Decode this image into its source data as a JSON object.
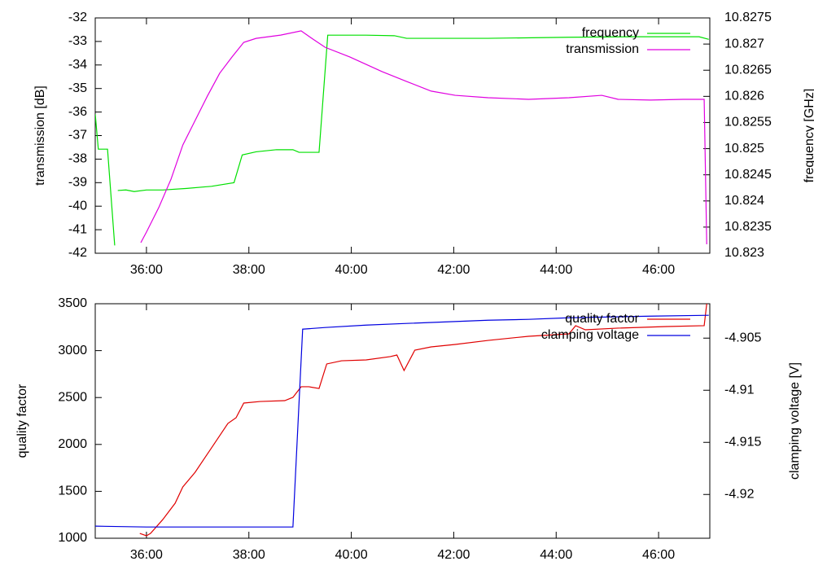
{
  "chart_data": [
    {
      "type": "line",
      "ylabel": "transmission [dB]",
      "y2label": "frequency [GHz]",
      "xlim": [
        35,
        47
      ],
      "xticks": [
        {
          "value": 36,
          "label": "36:00"
        },
        {
          "value": 38,
          "label": "38:00"
        },
        {
          "value": 40,
          "label": "40:00"
        },
        {
          "value": 42,
          "label": "42:00"
        },
        {
          "value": 44,
          "label": "44:00"
        },
        {
          "value": 46,
          "label": "46:00"
        }
      ],
      "ylim": [
        -42,
        -32
      ],
      "yticks": [
        -42,
        -41,
        -40,
        -39,
        -38,
        -37,
        -36,
        -35,
        -34,
        -33,
        -32
      ],
      "y2lim": [
        10.823,
        10.8275
      ],
      "y2ticks": [
        10.823,
        10.8235,
        10.824,
        10.8245,
        10.825,
        10.8255,
        10.826,
        10.8265,
        10.827,
        10.8275
      ],
      "legend": "top-right",
      "series": [
        {
          "name": "frequency",
          "color": "#00e000",
          "axis": "y2",
          "x": [
            35.0,
            35.06,
            35.24,
            35.38,
            35.41,
            35.44,
            35.6,
            35.76,
            36.0,
            36.32,
            36.79,
            37.27,
            37.71,
            37.87,
            38.14,
            38.54,
            38.86,
            38.98,
            39.37,
            39.54,
            40.29,
            40.84,
            41.08,
            42.67,
            44.25,
            45.52,
            46.79,
            46.98
          ],
          "values": [
            10.82566,
            10.82499,
            10.82499,
            10.82315,
            null,
            10.8242,
            10.82421,
            10.82418,
            10.82421,
            10.82421,
            10.82424,
            10.82428,
            10.82435,
            10.82488,
            10.82494,
            10.82498,
            10.82498,
            10.82493,
            10.82493,
            10.82717,
            10.82717,
            10.82716,
            10.82711,
            10.82711,
            10.82713,
            10.82714,
            10.82714,
            10.82709
          ]
        },
        {
          "name": "transmission",
          "color": "#e000e0",
          "x": [
            35.89,
            36.0,
            36.24,
            36.48,
            36.71,
            36.95,
            37.19,
            37.43,
            37.67,
            37.9,
            38.14,
            38.62,
            39.02,
            39.25,
            39.49,
            39.97,
            40.6,
            41.08,
            41.56,
            42.03,
            42.67,
            43.46,
            44.25,
            44.89,
            45.21,
            45.84,
            46.48,
            46.89,
            46.94
          ],
          "values": [
            -41.55,
            -41.1,
            -40.06,
            -38.85,
            -37.4,
            -36.36,
            -35.32,
            -34.35,
            -33.66,
            -33.04,
            -32.87,
            -32.73,
            -32.55,
            -32.9,
            -33.25,
            -33.66,
            -34.28,
            -34.7,
            -35.11,
            -35.29,
            -35.39,
            -35.46,
            -35.39,
            -35.29,
            -35.46,
            -35.49,
            -35.46,
            -35.46,
            -41.62
          ]
        }
      ]
    },
    {
      "type": "line",
      "ylabel": "quality factor",
      "y2label": "clamping voltage [V]",
      "xlim": [
        35,
        47
      ],
      "xticks": [
        {
          "value": 36,
          "label": "36:00"
        },
        {
          "value": 38,
          "label": "38:00"
        },
        {
          "value": 40,
          "label": "40:00"
        },
        {
          "value": 42,
          "label": "42:00"
        },
        {
          "value": 44,
          "label": "44:00"
        },
        {
          "value": 46,
          "label": "46:00"
        }
      ],
      "ylim": [
        1000,
        3500
      ],
      "yticks": [
        1000,
        1500,
        2000,
        2500,
        3000,
        3500
      ],
      "y2lim": [
        -4.9242,
        -4.9017
      ],
      "y2ticks": [
        -4.92,
        -4.915,
        -4.91,
        -4.905
      ],
      "legend": "top-right",
      "series": [
        {
          "name": "quality factor",
          "color": "#e00000",
          "x": [
            35.87,
            36.0,
            36.08,
            36.32,
            36.56,
            36.71,
            36.95,
            37.27,
            37.59,
            37.75,
            37.9,
            38.22,
            38.7,
            38.86,
            39.02,
            39.17,
            39.37,
            39.52,
            39.81,
            40.29,
            40.76,
            40.89,
            41.03,
            41.24,
            41.56,
            42.03,
            42.67,
            43.46,
            44.25,
            44.38,
            44.57,
            45.21,
            46.16,
            46.89,
            46.94
          ],
          "values": [
            1052,
            1026,
            1052,
            1200,
            1373,
            1547,
            1703,
            1963,
            2224,
            2285,
            2441,
            2458,
            2467,
            2502,
            2615,
            2615,
            2597,
            2858,
            2892,
            2901,
            2936,
            2953,
            2788,
            3005,
            3040,
            3066,
            3109,
            3153,
            3179,
            3266,
            3222,
            3240,
            3257,
            3266,
            3500
          ]
        },
        {
          "name": "clamping voltage",
          "color": "#0000e0",
          "axis": "y2",
          "x": [
            35.0,
            36.0,
            37.11,
            37.9,
            38.86,
            39.05,
            39.49,
            40.29,
            41.08,
            41.87,
            42.67,
            43.46,
            44.25,
            45.05,
            45.84,
            46.98
          ],
          "values": [
            -4.92304,
            -4.92312,
            -4.92312,
            -4.92312,
            -4.92312,
            -4.90414,
            -4.90398,
            -4.90375,
            -4.90359,
            -4.90344,
            -4.90328,
            -4.9032,
            -4.90305,
            -4.90297,
            -4.90289,
            -4.90281
          ]
        }
      ]
    }
  ]
}
